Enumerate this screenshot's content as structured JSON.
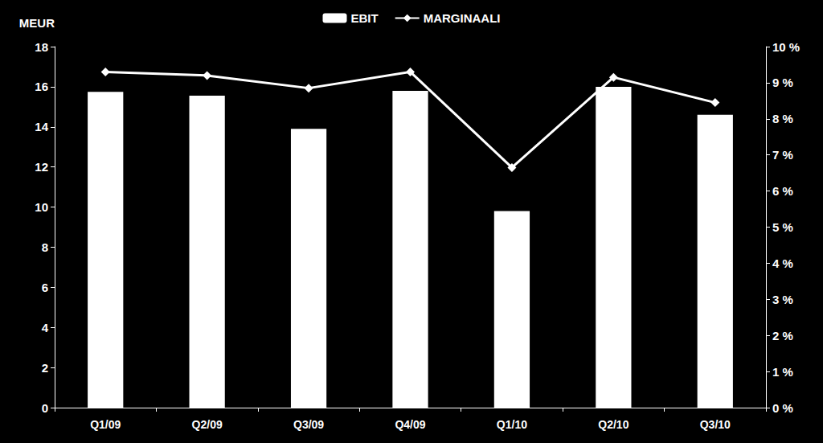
{
  "chart_data": {
    "type": "bar",
    "ylabel": "MEUR",
    "categories": [
      "Q1/09",
      "Q2/09",
      "Q3/09",
      "Q4/09",
      "Q1/10",
      "Q2/10",
      "Q3/10"
    ],
    "series": [
      {
        "name": "EBIT",
        "type": "bar",
        "color": "#ffffff",
        "values": [
          15.75,
          15.55,
          13.9,
          15.8,
          9.8,
          16.0,
          14.6
        ]
      },
      {
        "name": "MARGINAALI",
        "type": "line",
        "axis": "y2",
        "color": "#ffffff",
        "marker": "diamond",
        "values": [
          9.3,
          9.2,
          8.85,
          9.3,
          6.65,
          9.15,
          8.45
        ]
      }
    ],
    "ylim": [
      0,
      18
    ],
    "yticks": [
      0,
      2,
      4,
      6,
      8,
      10,
      12,
      14,
      16,
      18
    ],
    "y2lim": [
      0,
      10
    ],
    "y2ticks": [
      {
        "value": 0,
        "label": "0 %"
      },
      {
        "value": 1,
        "label": "1 %"
      },
      {
        "value": 2,
        "label": "2 %"
      },
      {
        "value": 3,
        "label": "3 %"
      },
      {
        "value": 4,
        "label": "4 %"
      },
      {
        "value": 5,
        "label": "5 %"
      },
      {
        "value": 6,
        "label": "6 %"
      },
      {
        "value": 7,
        "label": "7 %"
      },
      {
        "value": 8,
        "label": "8 %"
      },
      {
        "value": 9,
        "label": "9 %"
      },
      {
        "value": 10,
        "label": "10 %"
      }
    ],
    "grid": false,
    "legend": "top"
  }
}
